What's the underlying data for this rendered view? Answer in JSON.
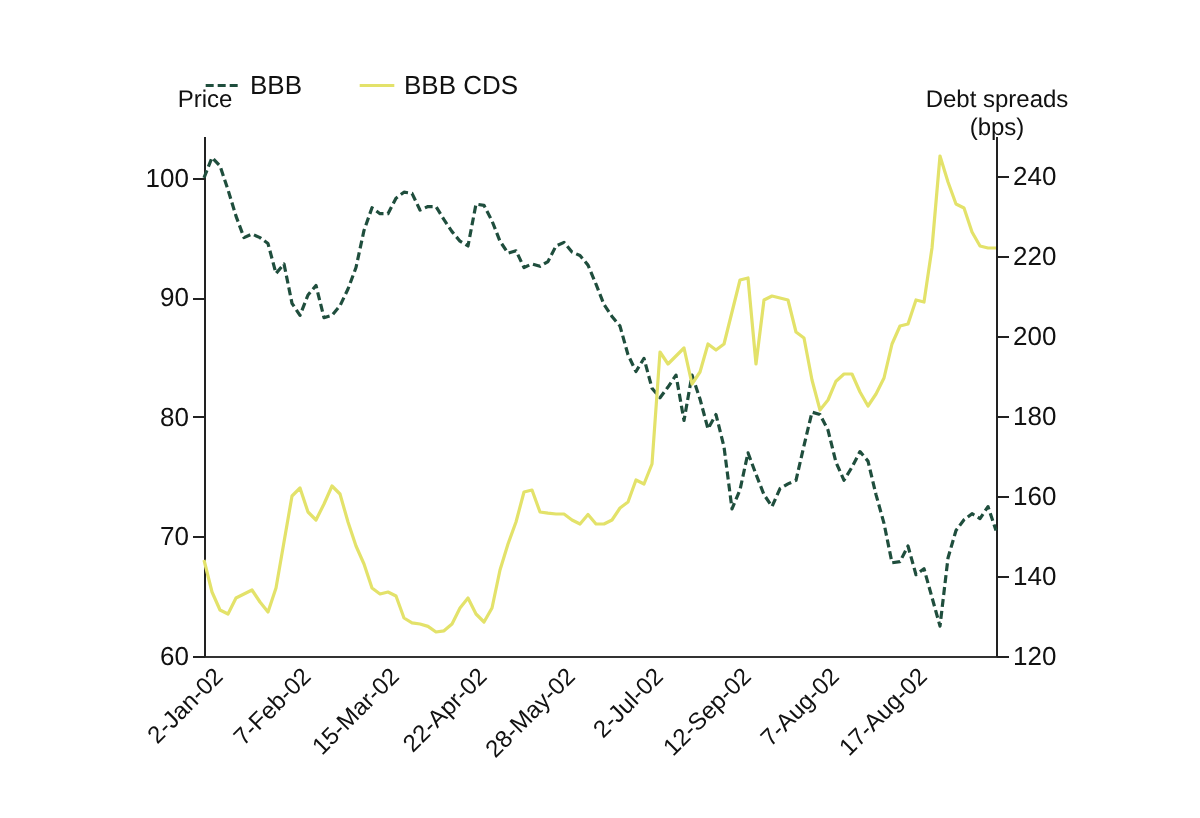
{
  "chart_data": {
    "type": "line",
    "categories": [
      null,
      null,
      "2-Jan-02",
      null,
      null,
      null,
      null,
      null,
      null,
      null,
      null,
      null,
      null,
      "7-Feb-02",
      null,
      null,
      null,
      null,
      null,
      null,
      null,
      null,
      null,
      null,
      "15-Mar-02",
      null,
      null,
      null,
      null,
      null,
      null,
      null,
      null,
      null,
      null,
      "22-Apr-02",
      null,
      null,
      null,
      null,
      null,
      null,
      null,
      null,
      null,
      null,
      "28-May-02",
      null,
      null,
      null,
      null,
      null,
      null,
      null,
      null,
      null,
      null,
      "2-Jul-02",
      null,
      null,
      null,
      null,
      null,
      null,
      null,
      null,
      null,
      null,
      "12-Sep-02",
      null,
      null,
      null,
      null,
      null,
      null,
      null,
      null,
      null,
      null,
      "7-Aug-02",
      null,
      null,
      null,
      null,
      null,
      null,
      null,
      null,
      null,
      null,
      "17-Aug-02",
      null,
      null,
      null,
      null,
      null,
      null,
      null,
      null,
      null
    ],
    "series": [
      {
        "name": "BBB",
        "color": "#1f4e3d",
        "line_style": "dashed",
        "values": [
          100,
          101.7,
          101,
          99,
          96.8,
          95,
          95.3,
          95,
          94.5,
          92,
          92.8,
          89.5,
          88.5,
          90.2,
          91,
          88.3,
          88.5,
          89.3,
          90.7,
          92.5,
          95.6,
          97.5,
          97,
          97,
          98.3,
          98.8,
          98.7,
          97.3,
          97.6,
          97.6,
          96.5,
          95.5,
          94.7,
          94.3,
          97.8,
          97.7,
          96.4,
          94.7,
          93.7,
          93.9,
          92.5,
          92.8,
          92.6,
          93,
          94.3,
          94.6,
          93.8,
          93.5,
          92.7,
          91.1,
          89.4,
          88.4,
          87.6,
          85.2,
          83.8,
          84.9,
          82.4,
          81.6,
          82.5,
          83.5,
          79.7,
          83.5,
          81.5,
          79,
          80.2,
          77.5,
          72.3,
          73.9,
          77,
          75.2,
          73.5,
          72.5,
          74,
          74.4,
          74.7,
          77.6,
          80.4,
          80.2,
          78.9,
          76.2,
          74.7,
          75.8,
          77.1,
          76.3,
          73.5,
          71.1,
          67.8,
          67.9,
          69.2,
          66.8,
          67.3,
          64.9,
          62.5,
          68.2,
          70.5,
          71.4,
          71.9,
          71.5,
          72.5,
          70.5
        ]
      },
      {
        "name": "BBB CDS",
        "color": "#e3e26a",
        "line_style": "solid",
        "axis": "y2",
        "values": [
          144,
          136,
          131.5,
          130.5,
          134.5,
          135.5,
          136.5,
          133.5,
          131,
          137,
          148.5,
          160,
          162,
          156,
          154,
          158,
          162.5,
          160.5,
          153.5,
          147.5,
          143,
          137,
          135.5,
          136,
          135,
          129.5,
          128.3,
          128,
          127.4,
          126,
          126.3,
          128,
          132,
          134.5,
          130.5,
          128.5,
          132,
          141.5,
          148,
          153.5,
          161,
          161.5,
          156,
          155.7,
          155.5,
          155.5,
          154,
          153,
          155.4,
          153,
          153,
          154,
          157,
          158.5,
          164,
          163,
          168,
          196,
          193,
          195,
          197,
          188,
          191,
          198,
          196.5,
          198,
          206,
          214,
          214.5,
          193,
          209,
          210,
          209.5,
          209,
          201,
          199.5,
          189,
          181.5,
          184,
          188.7,
          190.5,
          190.5,
          186,
          182.5,
          185.5,
          189.5,
          198,
          202.5,
          203,
          209,
          208.5,
          222,
          245,
          238.5,
          233,
          232,
          226,
          222.5,
          222,
          222
        ]
      }
    ],
    "ylabel": "Price",
    "y2label": "Debt spreads\n(bps)",
    "ylim": [
      60,
      103.5
    ],
    "yticks": [
      60,
      70,
      80,
      90,
      100
    ],
    "y2lim": [
      120,
      250
    ],
    "y2ticks": [
      120,
      140,
      160,
      180,
      200,
      220,
      240
    ],
    "legend": "top"
  }
}
